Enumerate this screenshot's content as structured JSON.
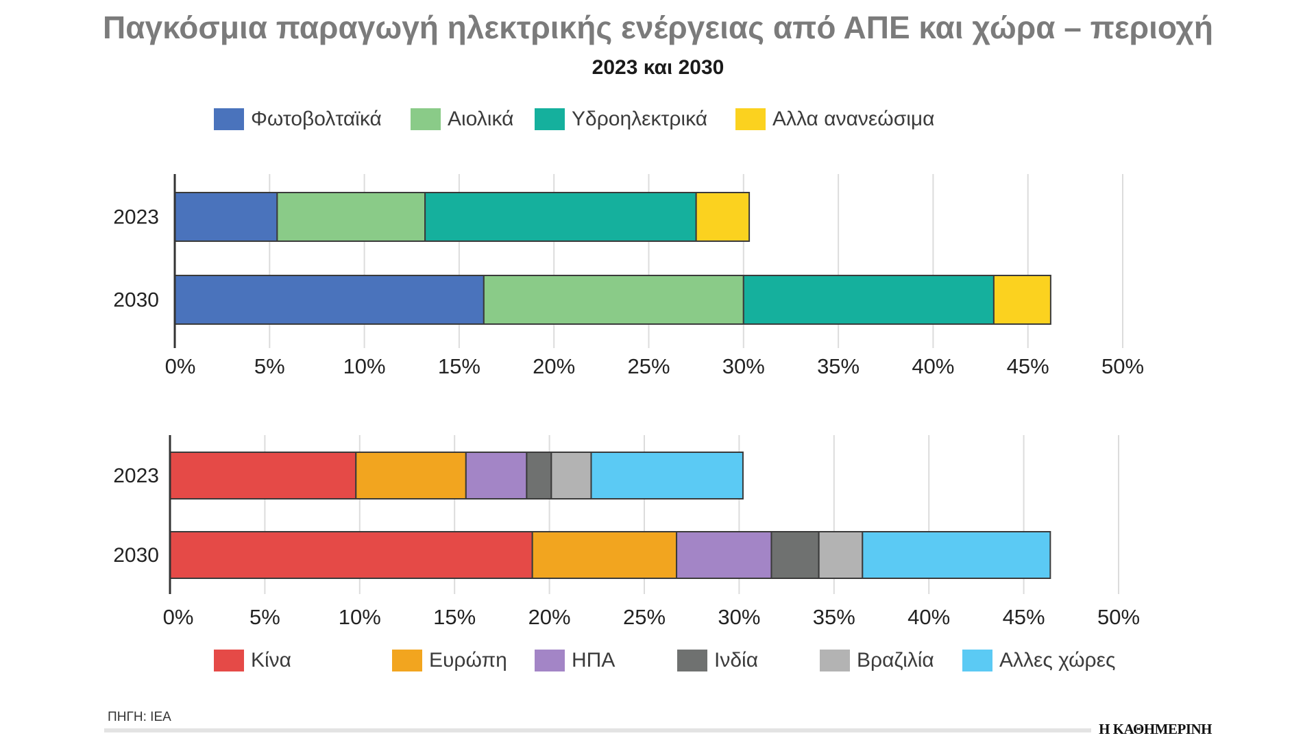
{
  "header": {
    "title": "Παγκόσμια παραγωγή ηλεκτρικής ενέργειας από ΑΠΕ και χώρα – περιοχή",
    "subtitle": "2023 και 2030"
  },
  "chart_data": [
    {
      "type": "bar",
      "orientation": "horizontal",
      "stacked": true,
      "categories": [
        "2023",
        "2030"
      ],
      "series": [
        {
          "name": "Φωτοβολταϊκά",
          "color": "#4a73bc",
          "values": [
            5.4,
            16.3
          ]
        },
        {
          "name": "Αιολικά",
          "color": "#8acb88",
          "values": [
            7.8,
            13.7
          ]
        },
        {
          "name": "Υδροηλεκτρικά",
          "color": "#15b09d",
          "values": [
            14.3,
            13.2
          ]
        },
        {
          "name": "Αλλα ανανεώσιμα",
          "color": "#fbd21f",
          "values": [
            2.8,
            3.0
          ]
        }
      ],
      "xlim": [
        0,
        50
      ],
      "xticks": [
        0,
        5,
        10,
        15,
        20,
        25,
        30,
        35,
        40,
        45,
        50
      ],
      "xtick_labels": [
        "0%",
        "5%",
        "10%",
        "15%",
        "20%",
        "25%",
        "30%",
        "35%",
        "40%",
        "45%",
        "50%"
      ],
      "grid": true,
      "legend": "top"
    },
    {
      "type": "bar",
      "orientation": "horizontal",
      "stacked": true,
      "categories": [
        "2023",
        "2030"
      ],
      "series": [
        {
          "name": "Κίνα",
          "color": "#e54a47",
          "values": [
            9.8,
            19.1
          ]
        },
        {
          "name": "Ευρώπη",
          "color": "#f2a51f",
          "values": [
            5.8,
            7.6
          ]
        },
        {
          "name": "ΗΠΑ",
          "color": "#a385c6",
          "values": [
            3.2,
            5.0
          ]
        },
        {
          "name": "Ινδία",
          "color": "#6f7170",
          "values": [
            1.3,
            2.5
          ]
        },
        {
          "name": "Βραζιλία",
          "color": "#b3b3b3",
          "values": [
            2.1,
            2.3
          ]
        },
        {
          "name": "Αλλες χώρες",
          "color": "#5bcaf4",
          "values": [
            8.0,
            9.9
          ]
        }
      ],
      "xlim": [
        0,
        50
      ],
      "xticks": [
        0,
        5,
        10,
        15,
        20,
        25,
        30,
        35,
        40,
        45,
        50
      ],
      "xtick_labels": [
        "0%",
        "5%",
        "10%",
        "15%",
        "20%",
        "25%",
        "30%",
        "35%",
        "40%",
        "45%",
        "50%"
      ],
      "grid": true,
      "legend": "bottom"
    }
  ],
  "footer": {
    "source": "ΠΗΓΗ: IEA",
    "brand": "Η ΚΑΘΗΜΕΡΙΝΗ"
  }
}
